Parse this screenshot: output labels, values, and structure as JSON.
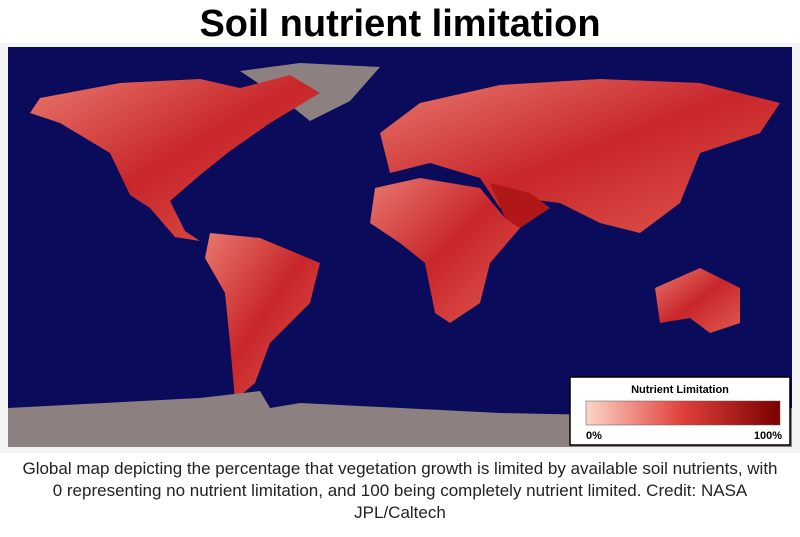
{
  "title": "Soil nutrient limitation",
  "legend": {
    "title": "Nutrient Limitation",
    "min_label": "0%",
    "max_label": "100%"
  },
  "caption": "Global map depicting the percentage that vegetation growth is limited by available soil nutrients, with 0 representing no nutrient limitation, and 100 being completely nutrient limited. Credit: NASA JPL/Caltech"
}
